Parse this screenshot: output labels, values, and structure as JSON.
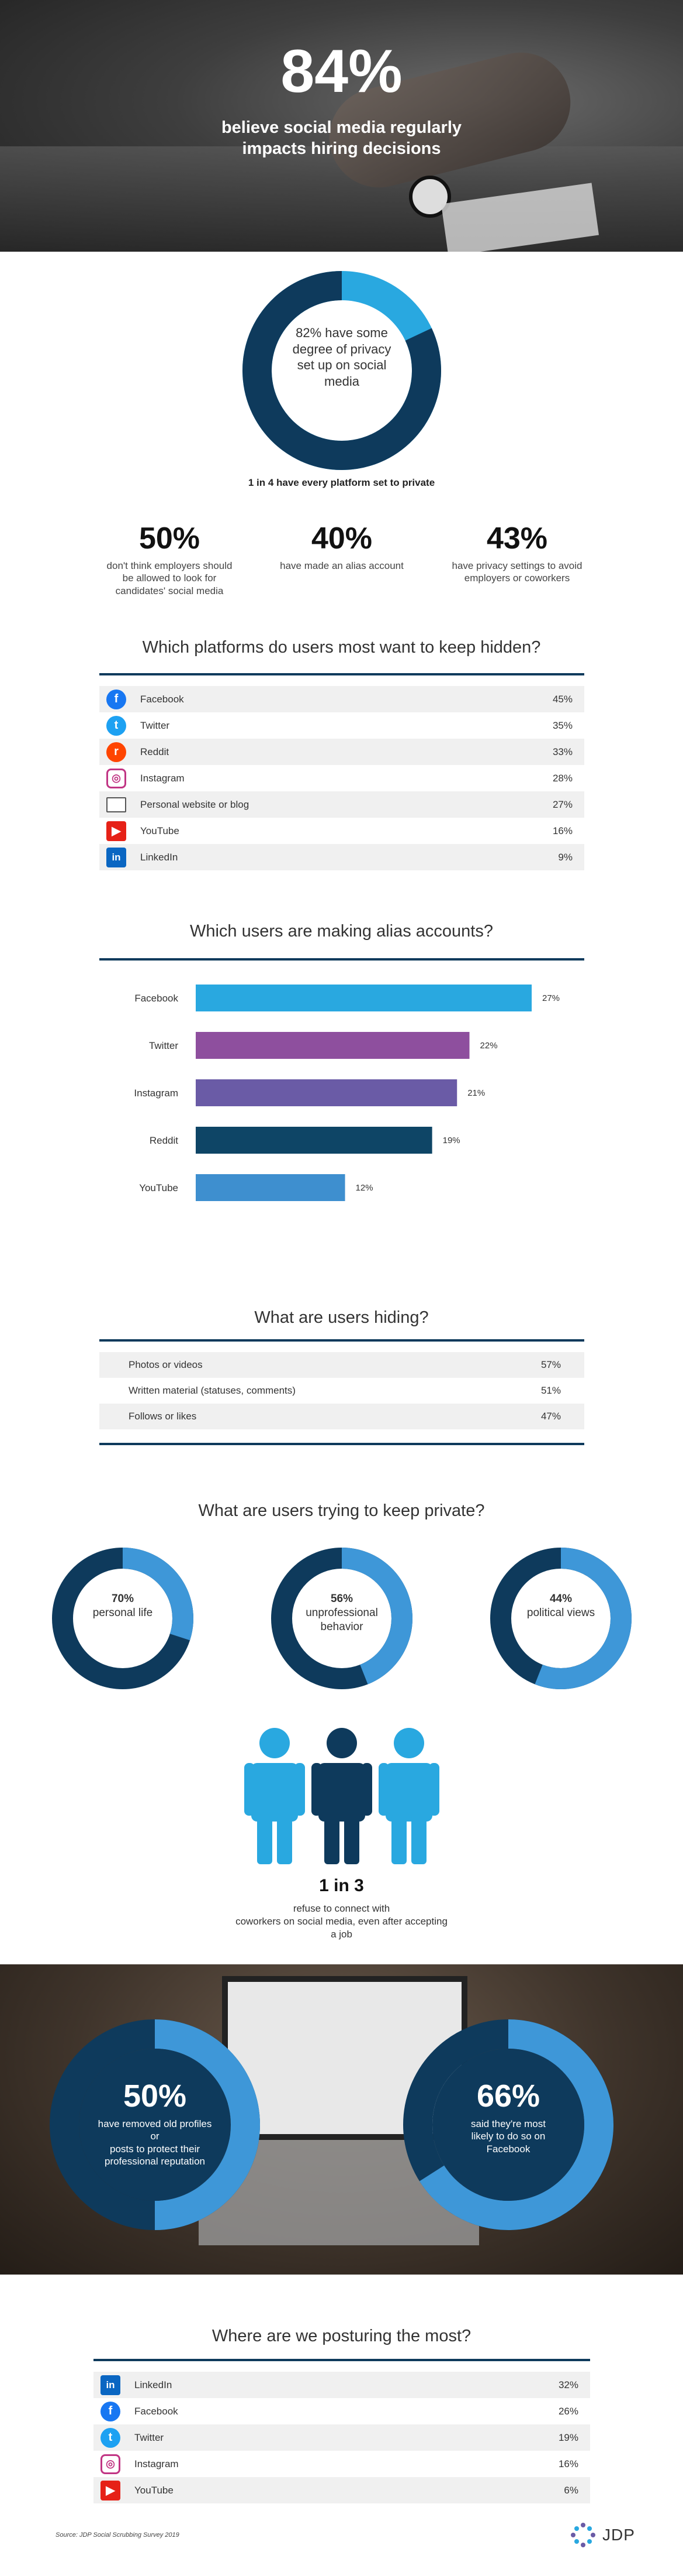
{
  "hero": {
    "percent": "84%",
    "subtitle_line1": "believe social media regularly",
    "subtitle_line2": "impacts hiring decisions"
  },
  "privacy_ring": {
    "line1": "82% have some",
    "line2": "degree of privacy",
    "line3": "set up on social",
    "line4": "media",
    "value": 82,
    "footnote": "1 in 4 have every platform set to private"
  },
  "stats": [
    {
      "value": "50%",
      "line1": "don't think employers should",
      "line2": "be allowed to look for",
      "line3": "candidates' social media"
    },
    {
      "value": "40%",
      "line1": "have made an alias account",
      "line2": "",
      "line3": ""
    },
    {
      "value": "43%",
      "line1": "have privacy settings to avoid",
      "line2": "employers or coworkers",
      "line3": ""
    }
  ],
  "hidden_platforms": {
    "title": "Which platforms do users most want to keep hidden?",
    "rows": [
      {
        "icon": "facebook-icon",
        "label": "Facebook",
        "value": "45%"
      },
      {
        "icon": "twitter-icon",
        "label": "Twitter",
        "value": "35%"
      },
      {
        "icon": "reddit-icon",
        "label": "Reddit",
        "value": "33%"
      },
      {
        "icon": "instagram-icon",
        "label": "Instagram",
        "value": "28%"
      },
      {
        "icon": "laptop-icon",
        "label": "Personal website or blog",
        "value": "27%"
      },
      {
        "icon": "youtube-icon",
        "label": "YouTube",
        "value": "16%"
      },
      {
        "icon": "linkedin-icon",
        "label": "LinkedIn",
        "value": "9%"
      }
    ]
  },
  "chart_data": {
    "type": "bar",
    "title": "Which users are making alias accounts?",
    "categories": [
      "Facebook",
      "Twitter",
      "Instagram",
      "Reddit",
      "YouTube"
    ],
    "values": [
      27,
      22,
      21,
      19,
      12
    ],
    "value_labels": [
      "27%",
      "22%",
      "21%",
      "19%",
      "12%"
    ],
    "colors": [
      "#29a8e0",
      "#8e4f9e",
      "#6a5ba6",
      "#0e4566",
      "#3e8fcf"
    ],
    "orientation": "horizontal",
    "xlim": [
      0,
      27
    ]
  },
  "hiding": {
    "title": "What are users hiding?",
    "rows": [
      {
        "label": "Photos or videos",
        "value": "57%"
      },
      {
        "label": "Written material (statuses, comments)",
        "value": "51%"
      },
      {
        "label": "Follows or likes",
        "value": "47%"
      }
    ]
  },
  "private": {
    "title": "What are users trying to keep private?",
    "donuts": [
      {
        "value_text": "70%",
        "label1": "personal life",
        "label2": "",
        "value": 70
      },
      {
        "value_text": "56%",
        "label1": "unprofessional",
        "label2": "behavior",
        "value": 56
      },
      {
        "value_text": "44%",
        "label1": "political views",
        "label2": "",
        "value": 44
      }
    ]
  },
  "coworkers": {
    "ratio": "1 in 3",
    "line1": "refuse to connect with",
    "line2": "coworkers on social media, even after accepting",
    "line3": "a job"
  },
  "removed": [
    {
      "value_text": "50%",
      "line1": "have removed old profiles or",
      "line2": "posts to protect their",
      "line3": "professional reputation",
      "value": 50
    },
    {
      "value_text": "66%",
      "line1": "said they're most",
      "line2": "likely to do so on",
      "line3": "Facebook",
      "value": 66
    }
  ],
  "posturing": {
    "title": "Where are we posturing the most?",
    "rows": [
      {
        "icon": "linkedin-icon",
        "label": "LinkedIn",
        "value": "32%"
      },
      {
        "icon": "facebook-icon",
        "label": "Facebook",
        "value": "26%"
      },
      {
        "icon": "twitter-icon",
        "label": "Twitter",
        "value": "19%"
      },
      {
        "icon": "instagram-icon",
        "label": "Instagram",
        "value": "16%"
      },
      {
        "icon": "youtube-icon",
        "label": "YouTube",
        "value": "6%"
      }
    ]
  },
  "footer": {
    "source": "Source: JDP Social Scrubbing Survey 2019",
    "brand": "JDP"
  },
  "colors": {
    "navy": "#0e3a5c",
    "light_blue": "#3e97d8",
    "sky": "#29a8e0"
  }
}
